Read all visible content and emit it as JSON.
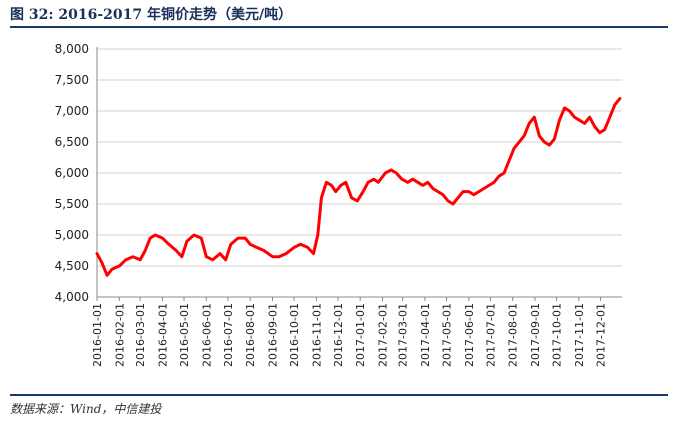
{
  "figure": {
    "title": "图 32: 2016-2017 年铜价走势（美元/吨）",
    "source": "数据来源：Wind，中信建投"
  },
  "chart_data": {
    "type": "line",
    "title": "图 32: 2016-2017 年铜价走势（美元/吨）",
    "xlabel": "",
    "ylabel": "",
    "ylim": [
      4000,
      8000
    ],
    "y_ticks": [
      "4,000",
      "4,500",
      "5,000",
      "5,500",
      "6,000",
      "6,500",
      "7,000",
      "7,500",
      "8,000"
    ],
    "x_ticks": [
      "2016-01-01",
      "2016-02-01",
      "2016-03-01",
      "2016-04-01",
      "2016-05-01",
      "2016-06-01",
      "2016-07-01",
      "2016-08-01",
      "2016-09-01",
      "2016-10-01",
      "2016-11-01",
      "2016-12-01",
      "2017-01-01",
      "2017-02-01",
      "2017-03-01",
      "2017-04-01",
      "2017-05-01",
      "2017-06-01",
      "2017-07-01",
      "2017-08-01",
      "2017-09-01",
      "2017-10-01",
      "2017-11-01",
      "2017-12-01"
    ],
    "grid": true,
    "line_color": "#ff0000",
    "series": [
      {
        "x": [
          "2016-01-01",
          "2016-01-08",
          "2016-01-15",
          "2016-01-22",
          "2016-02-01",
          "2016-02-10",
          "2016-02-20",
          "2016-03-01",
          "2016-03-08",
          "2016-03-15",
          "2016-03-22",
          "2016-04-01",
          "2016-04-10",
          "2016-04-20",
          "2016-04-28",
          "2016-05-05",
          "2016-05-15",
          "2016-05-25",
          "2016-06-01",
          "2016-06-10",
          "2016-06-20",
          "2016-06-28",
          "2016-07-05",
          "2016-07-15",
          "2016-07-25",
          "2016-08-01",
          "2016-08-10",
          "2016-08-20",
          "2016-09-01",
          "2016-09-10",
          "2016-09-20",
          "2016-10-01",
          "2016-10-10",
          "2016-10-20",
          "2016-10-28",
          "2016-11-03",
          "2016-11-08",
          "2016-11-15",
          "2016-11-22",
          "2016-11-28",
          "2016-12-05",
          "2016-12-12",
          "2016-12-20",
          "2016-12-28",
          "2017-01-05",
          "2017-01-12",
          "2017-01-20",
          "2017-01-26",
          "2017-02-05",
          "2017-02-13",
          "2017-02-20",
          "2017-02-28",
          "2017-03-08",
          "2017-03-15",
          "2017-03-22",
          "2017-03-29",
          "2017-04-05",
          "2017-04-12",
          "2017-04-19",
          "2017-04-26",
          "2017-05-03",
          "2017-05-10",
          "2017-05-17",
          "2017-05-24",
          "2017-06-01",
          "2017-06-08",
          "2017-06-15",
          "2017-06-22",
          "2017-06-29",
          "2017-07-06",
          "2017-07-13",
          "2017-07-20",
          "2017-07-27",
          "2017-08-03",
          "2017-08-10",
          "2017-08-17",
          "2017-08-24",
          "2017-08-31",
          "2017-09-07",
          "2017-09-14",
          "2017-09-21",
          "2017-09-28",
          "2017-10-05",
          "2017-10-12",
          "2017-10-19",
          "2017-10-26",
          "2017-11-02",
          "2017-11-09",
          "2017-11-16",
          "2017-11-23",
          "2017-11-30",
          "2017-12-07",
          "2017-12-14",
          "2017-12-21",
          "2017-12-28"
        ],
        "values": [
          4700,
          4550,
          4350,
          4450,
          4500,
          4600,
          4650,
          4600,
          4750,
          4950,
          5000,
          4950,
          4850,
          4750,
          4650,
          4900,
          5000,
          4950,
          4650,
          4600,
          4700,
          4600,
          4850,
          4950,
          4950,
          4850,
          4800,
          4750,
          4650,
          4650,
          4700,
          4800,
          4850,
          4800,
          4700,
          5000,
          5600,
          5850,
          5800,
          5700,
          5800,
          5850,
          5600,
          5550,
          5700,
          5850,
          5900,
          5850,
          6000,
          6050,
          6000,
          5900,
          5850,
          5900,
          5850,
          5800,
          5850,
          5750,
          5700,
          5650,
          5550,
          5500,
          5600,
          5700,
          5700,
          5650,
          5700,
          5750,
          5800,
          5850,
          5950,
          6000,
          6200,
          6400,
          6500,
          6600,
          6800,
          6900,
          6600,
          6500,
          6450,
          6550,
          6850,
          7050,
          7000,
          6900,
          6850,
          6800,
          6900,
          6750,
          6650,
          6700,
          6900,
          7100,
          7200
        ]
      }
    ]
  }
}
